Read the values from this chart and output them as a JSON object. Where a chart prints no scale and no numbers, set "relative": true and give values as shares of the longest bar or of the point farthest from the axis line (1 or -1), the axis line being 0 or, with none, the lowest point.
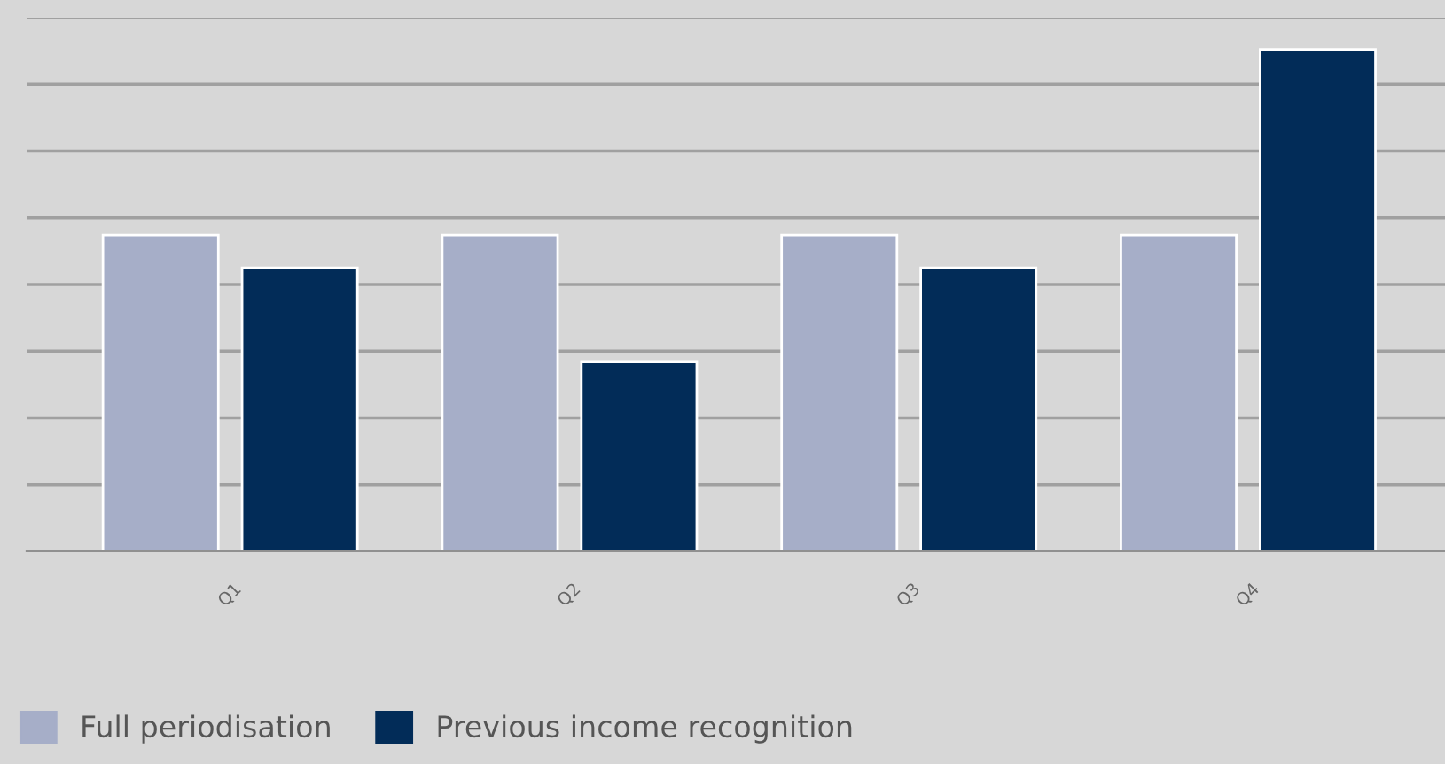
{
  "chart_data": {
    "type": "bar",
    "relative": true,
    "categories": [
      "Q1",
      "Q2",
      "Q3",
      "Q4"
    ],
    "series": [
      {
        "name": "Full periodisation",
        "color": "#a6aec8",
        "values": [
          0.63,
          0.63,
          0.63,
          0.63
        ]
      },
      {
        "name": "Previous income recognition",
        "color": "#022c58",
        "values": [
          0.565,
          0.378,
          0.565,
          1
        ]
      }
    ],
    "grid": "y",
    "legend": "bottom left"
  }
}
